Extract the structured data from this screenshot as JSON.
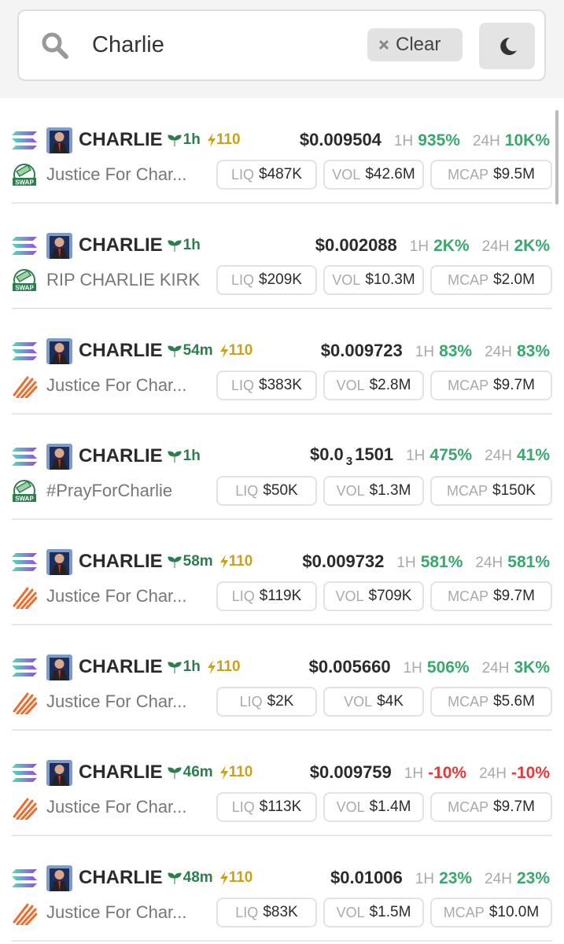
{
  "search": {
    "query": "Charlie",
    "clear": "Clear"
  },
  "labels": {
    "h1": "1H",
    "h24": "24H",
    "liq": "LIQ",
    "vol": "VOL",
    "mcap": "MCAP",
    "swap": "SWAP"
  },
  "rows": [
    {
      "symbol": "CHARLIE",
      "age": "1h",
      "boost": "110",
      "price": "$0.009504",
      "h1": "935%",
      "h24": "10K%",
      "name": "Justice For Char...",
      "liq": "$487K",
      "vol": "$42.6M",
      "mcap": "$9.5M",
      "dex": "swap"
    },
    {
      "symbol": "CHARLIE",
      "age": "1h",
      "price": "$0.002088",
      "h1": "2K%",
      "h24": "2K%",
      "name": "RIP CHARLIE KIRK",
      "liq": "$209K",
      "vol": "$10.3M",
      "mcap": "$2.0M",
      "dex": "swap"
    },
    {
      "symbol": "CHARLIE",
      "age": "54m",
      "boost": "110",
      "price": "$0.009723",
      "h1": "83%",
      "h24": "83%",
      "name": "Justice For Char...",
      "liq": "$383K",
      "vol": "$2.8M",
      "mcap": "$9.7M",
      "dex": "pump"
    },
    {
      "symbol": "CHARLIE",
      "age": "1h",
      "price": {
        "lead": "$0.0",
        "sub": "3",
        "tail": "1501"
      },
      "h1": "475%",
      "h24": "41%",
      "name": "#PrayForCharlie",
      "liq": "$50K",
      "vol": "$1.3M",
      "mcap": "$150K",
      "dex": "swap"
    },
    {
      "symbol": "CHARLIE",
      "age": "58m",
      "boost": "110",
      "price": "$0.009732",
      "h1": "581%",
      "h24": "581%",
      "name": "Justice For Char...",
      "liq": "$119K",
      "vol": "$709K",
      "mcap": "$9.7M",
      "dex": "pump"
    },
    {
      "symbol": "CHARLIE",
      "age": "1h",
      "boost": "110",
      "price": "$0.005660",
      "h1": "506%",
      "h24": "3K%",
      "name": "Justice For Char...",
      "liq": "$2K",
      "vol": "$4K",
      "mcap": "$5.6M",
      "dex": "pump"
    },
    {
      "symbol": "CHARLIE",
      "age": "46m",
      "boost": "110",
      "price": "$0.009759",
      "h1": "-10%",
      "h24": "-10%",
      "name": "Justice For Char...",
      "liq": "$113K",
      "vol": "$1.4M",
      "mcap": "$9.7M",
      "dex": "pump"
    },
    {
      "symbol": "CHARLIE",
      "age": "48m",
      "boost": "110",
      "price": "$0.01006",
      "h1": "23%",
      "h24": "23%",
      "name": "Justice For Char...",
      "liq": "$83K",
      "vol": "$1.5M",
      "mcap": "$10.0M",
      "dex": "pump"
    }
  ]
}
